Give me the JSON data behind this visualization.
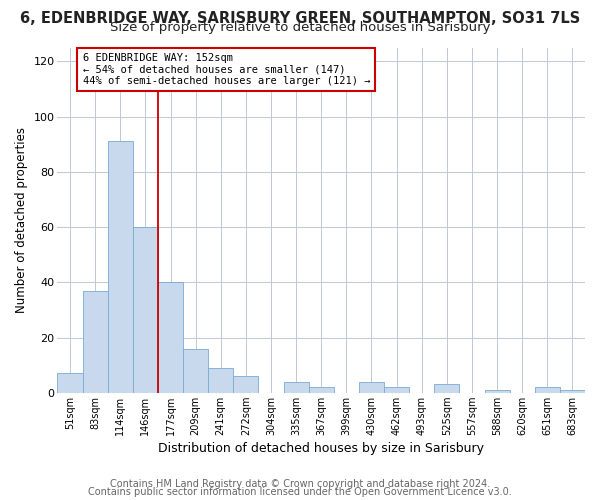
{
  "title": "6, EDENBRIDGE WAY, SARISBURY GREEN, SOUTHAMPTON, SO31 7LS",
  "subtitle": "Size of property relative to detached houses in Sarisbury",
  "xlabel": "Distribution of detached houses by size in Sarisbury",
  "ylabel": "Number of detached properties",
  "bar_color": "#c8d9ee",
  "bar_edge_color": "#7aaad0",
  "categories": [
    "51sqm",
    "83sqm",
    "114sqm",
    "146sqm",
    "177sqm",
    "209sqm",
    "241sqm",
    "272sqm",
    "304sqm",
    "335sqm",
    "367sqm",
    "399sqm",
    "430sqm",
    "462sqm",
    "493sqm",
    "525sqm",
    "557sqm",
    "588sqm",
    "620sqm",
    "651sqm",
    "683sqm"
  ],
  "values": [
    7,
    37,
    91,
    60,
    40,
    16,
    9,
    6,
    0,
    4,
    2,
    0,
    4,
    2,
    0,
    3,
    0,
    1,
    0,
    2,
    1
  ],
  "ylim": [
    0,
    125
  ],
  "yticks": [
    0,
    20,
    40,
    60,
    80,
    100,
    120
  ],
  "vline_index": 3,
  "vline_color": "#cc0000",
  "annotation_line1": "6 EDENBRIDGE WAY: 152sqm",
  "annotation_line2": "← 54% of detached houses are smaller (147)",
  "annotation_line3": "44% of semi-detached houses are larger (121) →",
  "annotation_box_color": "#ffffff",
  "annotation_box_edge": "#cc0000",
  "footer1": "Contains HM Land Registry data © Crown copyright and database right 2024.",
  "footer2": "Contains public sector information licensed under the Open Government Licence v3.0.",
  "background_color": "#ffffff",
  "grid_color": "#c0c8d8",
  "title_fontsize": 10.5,
  "subtitle_fontsize": 9.5,
  "tick_fontsize": 7,
  "xlabel_fontsize": 9,
  "ylabel_fontsize": 8.5,
  "footer_fontsize": 7
}
